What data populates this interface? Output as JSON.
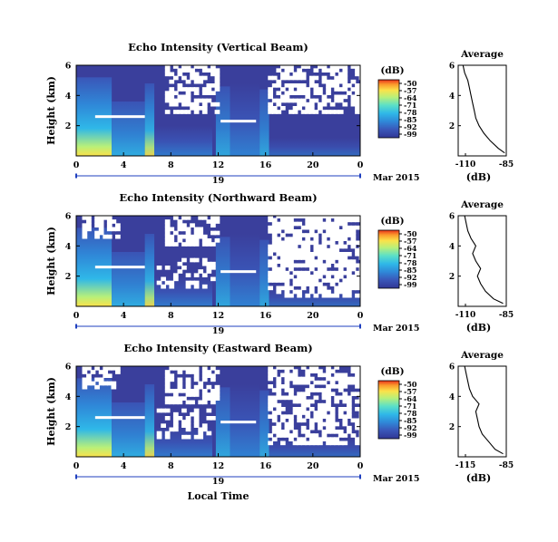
{
  "figure": {
    "xlabel": "Local Time",
    "date_label": "Mar 2015",
    "day_label": "19",
    "cbar_unit": "(dB)",
    "profile_title": "Average",
    "profile_xlabel": "(dB)"
  },
  "colors": {
    "background": "#3a3f9c",
    "scale": [
      "#313695",
      "#3a56b8",
      "#2f88d8",
      "#2fb8e8",
      "#5be0c8",
      "#b8f07a",
      "#fbe24a",
      "#fb9a2c",
      "#e8321c"
    ],
    "missing": "#ffffff",
    "axis": "#1f3fbf"
  },
  "chart_data": [
    {
      "type": "heatmap",
      "title": "Echo Intensity (Vertical Beam)",
      "ylabel": "Height (km)",
      "x_ticks": [
        "0",
        "4",
        "8",
        "12",
        "16",
        "20",
        "0"
      ],
      "xlim": [
        0,
        24
      ],
      "y_ticks": [
        "6",
        "4",
        "2"
      ],
      "ylim": [
        0,
        6
      ],
      "colorbar": {
        "unit": "(dB)",
        "ticks": [
          "-50",
          "-57",
          "-64",
          "-71",
          "-78",
          "-85",
          "-92",
          "-99"
        ]
      },
      "profile": {
        "title": "Average",
        "xlabel": "(dB)",
        "x_ticks": [
          "-110",
          "-85"
        ],
        "xlim": [
          -115,
          -85
        ],
        "y_ticks": [
          "6",
          "4",
          "2"
        ],
        "ylim": [
          0,
          6
        ],
        "height": [
          0.2,
          0.5,
          1.0,
          1.5,
          2.0,
          2.5,
          3.0,
          3.5,
          4.0,
          4.5,
          5.0,
          5.5,
          6.0
        ],
        "values": [
          -86,
          -90,
          -95,
          -99,
          -102,
          -104,
          -105,
          -106,
          -107,
          -108,
          -109,
          -111,
          -112
        ]
      }
    },
    {
      "type": "heatmap",
      "title": "Echo Intensity (Northward Beam)",
      "ylabel": "Height (km)",
      "x_ticks": [
        "0",
        "4",
        "8",
        "12",
        "16",
        "20",
        "0"
      ],
      "xlim": [
        0,
        24
      ],
      "y_ticks": [
        "6",
        "4",
        "2"
      ],
      "ylim": [
        0,
        6
      ],
      "colorbar": {
        "unit": "(dB)",
        "ticks": [
          "-50",
          "-57",
          "-64",
          "-71",
          "-78",
          "-85",
          "-92",
          "-99"
        ]
      },
      "profile": {
        "title": "Average",
        "xlabel": "(dB)",
        "x_ticks": [
          "-110",
          "-85"
        ],
        "xlim": [
          -115,
          -85
        ],
        "y_ticks": [
          "6",
          "4",
          "2"
        ],
        "ylim": [
          0,
          6
        ],
        "height": [
          0.2,
          0.5,
          1.0,
          1.5,
          2.0,
          2.5,
          3.0,
          3.5,
          4.0,
          4.5,
          5.0,
          5.5,
          6.0
        ],
        "values": [
          -87,
          -93,
          -98,
          -101,
          -103,
          -101,
          -104,
          -106,
          -104,
          -107,
          -109,
          -110,
          -111
        ]
      }
    },
    {
      "type": "heatmap",
      "title": "Echo Intensity (Eastward Beam)",
      "ylabel": "Height (km)",
      "x_ticks": [
        "0",
        "4",
        "8",
        "12",
        "16",
        "20",
        "0"
      ],
      "xlim": [
        0,
        24
      ],
      "y_ticks": [
        "6",
        "4",
        "2"
      ],
      "ylim": [
        0,
        6
      ],
      "colorbar": {
        "unit": "(dB)",
        "ticks": [
          "-50",
          "-57",
          "-64",
          "-71",
          "-78",
          "-85",
          "-92",
          "-99"
        ]
      },
      "profile": {
        "title": "Average",
        "xlabel": "(dB)",
        "x_ticks": [
          "-115",
          "-85"
        ],
        "xlim": [
          -115,
          -85
        ],
        "y_ticks": [
          "6",
          "4",
          "2"
        ],
        "ylim": [
          0,
          6
        ],
        "height": [
          0.2,
          0.5,
          1.0,
          1.5,
          2.0,
          2.5,
          3.0,
          3.5,
          4.0,
          4.5,
          5.0,
          5.5,
          6.0
        ],
        "values": [
          -87,
          -92,
          -96,
          -100,
          -102,
          -103,
          -104,
          -102,
          -106,
          -108,
          -109,
          -110,
          -111
        ]
      }
    }
  ]
}
